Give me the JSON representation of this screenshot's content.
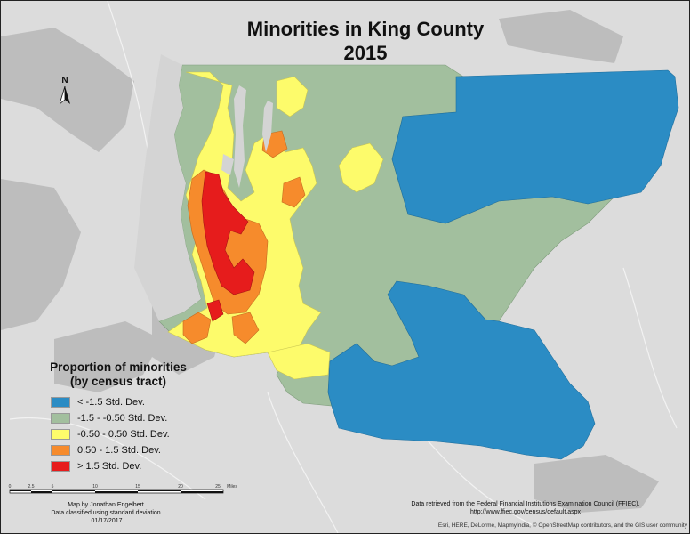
{
  "title": {
    "line1": "Minorities in King County",
    "line2": "2015"
  },
  "north_arrow": {
    "label": "N"
  },
  "legend": {
    "title_line1": "Proportion of minorities",
    "title_line2": "(by census tract)",
    "classes": [
      {
        "label": "< -1.5 Std. Dev.",
        "color": "#2b8cc4"
      },
      {
        "label": "-1.5 - -0.50 Std. Dev.",
        "color": "#a2bf9e"
      },
      {
        "label": "-0.50 - 0.50 Std. Dev.",
        "color": "#fdfb6b"
      },
      {
        "label": "0.50 - 1.5 Std. Dev.",
        "color": "#f68b2c"
      },
      {
        "label": "> 1.5 Std. Dev.",
        "color": "#e61c1c"
      }
    ]
  },
  "scale_bar": {
    "ticks": [
      "0",
      "2.5",
      "5",
      "10",
      "15",
      "20",
      "25"
    ],
    "unit": "Miles"
  },
  "credits": {
    "author": "Map by Jonathan Engelbert.",
    "method": "Data classified using standard deviation.",
    "date": "01/17/2017"
  },
  "source": {
    "line1": "Data retrieved from the Federal Financial Institutions Examination Council (FFIEC).",
    "line2": "http://www.ffiec.gov/census/default.aspx"
  },
  "basemap_attribution": "Esri, HERE, DeLorme, MapmyIndia, © OpenStreetMap contributors, and the GIS user community"
}
